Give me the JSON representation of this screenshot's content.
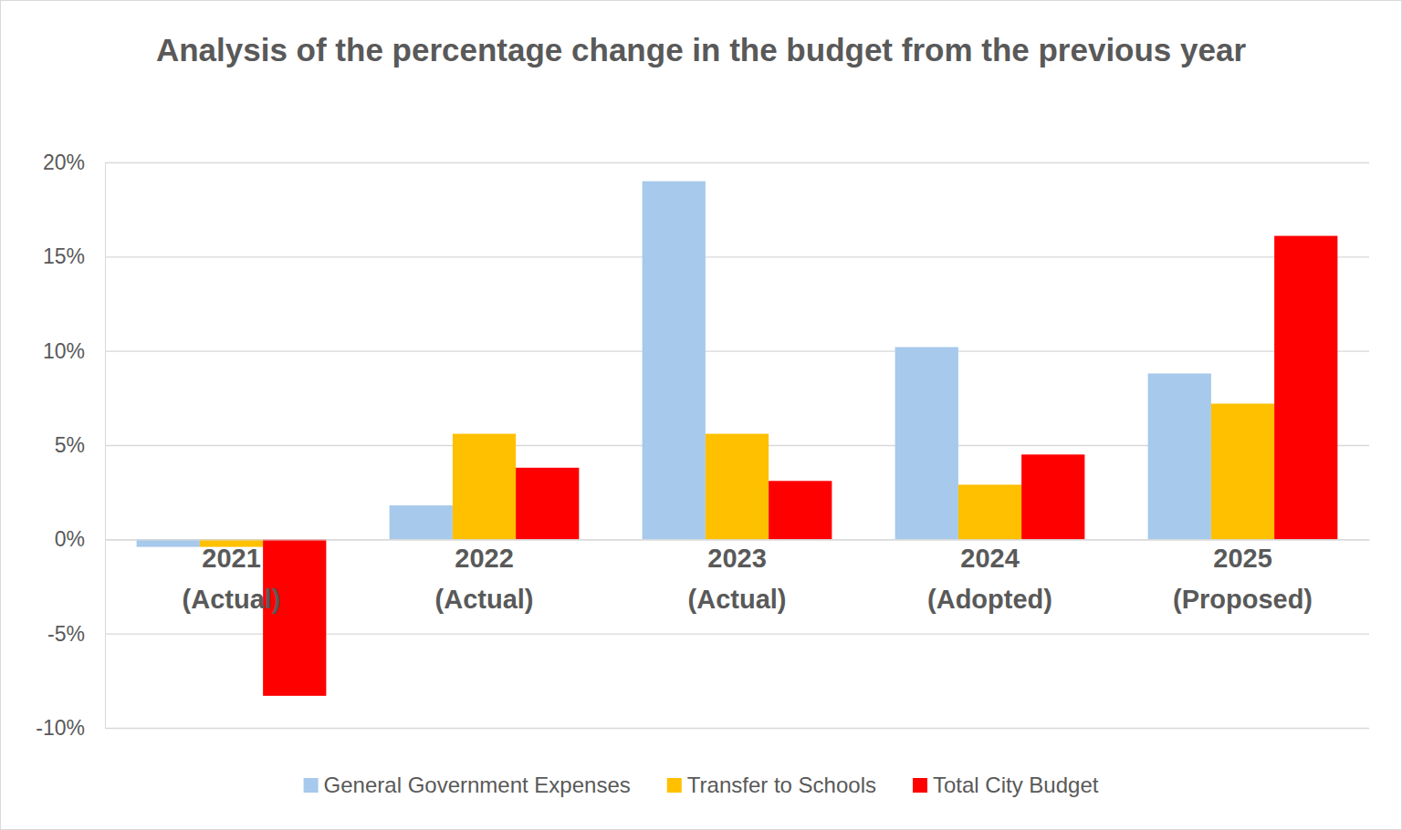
{
  "chart_data": {
    "type": "bar",
    "title": "Analysis of the percentage change in the budget from the previous year",
    "categories": [
      "2021 (Actual)",
      "2022 (Actual)",
      "2023 (Actual)",
      "2024 (Adopted)",
      "2025 (Proposed)"
    ],
    "series": [
      {
        "name": "General Government Expenses",
        "color": "#a6c9ec",
        "values": [
          -0.4,
          1.8,
          19.0,
          10.2,
          8.8
        ]
      },
      {
        "name": "Transfer to Schools",
        "color": "#ffc000",
        "values": [
          -0.4,
          5.6,
          5.6,
          2.9,
          7.2
        ]
      },
      {
        "name": "Total City Budget",
        "color": "#ff0000",
        "values": [
          -8.3,
          3.8,
          3.1,
          4.5,
          16.1
        ]
      }
    ],
    "ylim": [
      -10,
      20
    ],
    "yticks": [
      {
        "value": -10,
        "label": "-10%"
      },
      {
        "value": -5,
        "label": "-5%"
      },
      {
        "value": 0,
        "label": "0%"
      },
      {
        "value": 5,
        "label": "5%"
      },
      {
        "value": 10,
        "label": "10%"
      },
      {
        "value": 15,
        "label": "15%"
      },
      {
        "value": 20,
        "label": "20%"
      }
    ],
    "grid": true,
    "legend": "bottom"
  }
}
